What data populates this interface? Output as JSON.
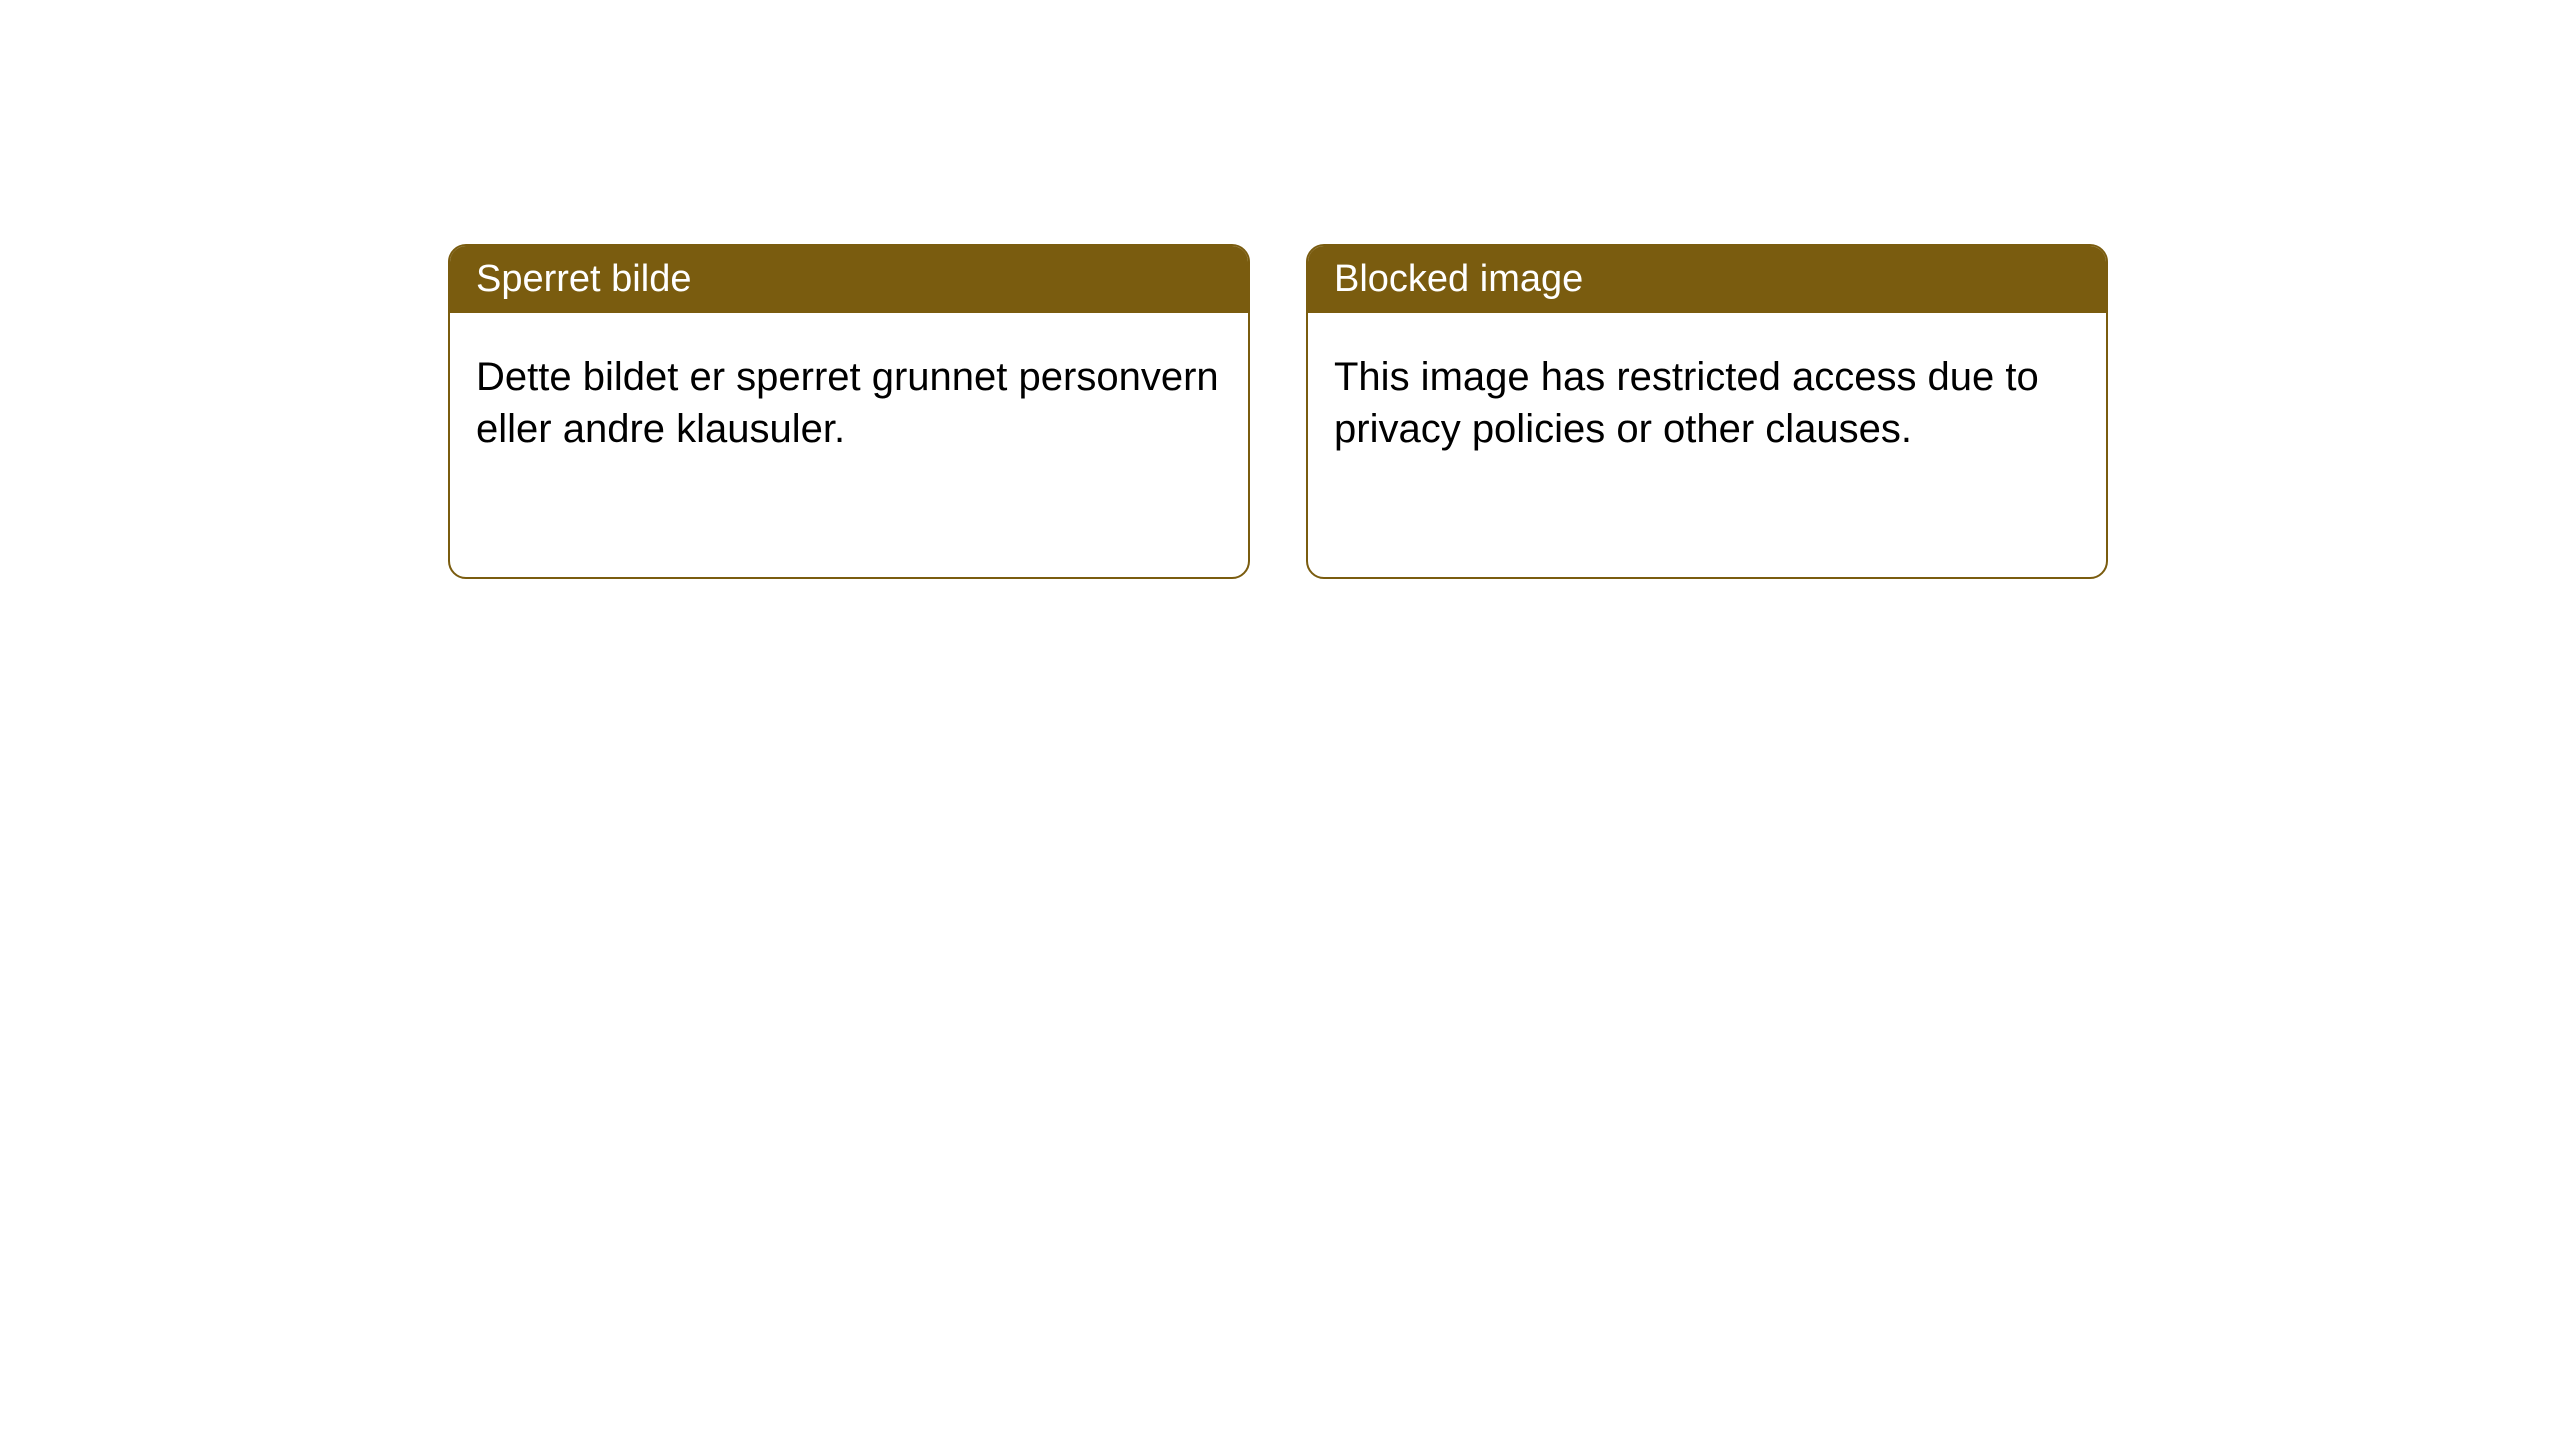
{
  "cards": [
    {
      "title": "Sperret bilde",
      "body": "Dette bildet er sperret grunnet personvern eller andre klausuler."
    },
    {
      "title": "Blocked image",
      "body": "This image has restricted access due to privacy policies or other clauses."
    }
  ],
  "styling": {
    "card_border_color": "#7a5c0f",
    "card_header_bg": "#7a5c0f",
    "card_header_text_color": "#ffffff",
    "card_body_text_color": "#000000",
    "page_bg": "#ffffff",
    "border_radius": 18,
    "header_fontsize": 38,
    "body_fontsize": 40
  }
}
